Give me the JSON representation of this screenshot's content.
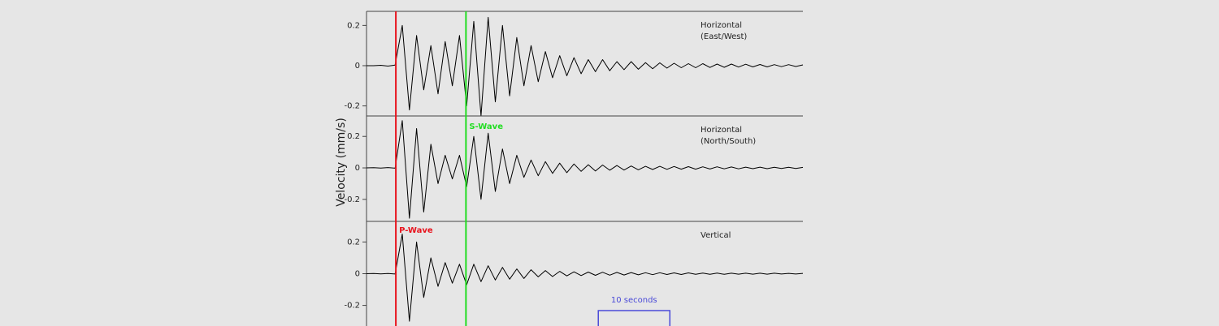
{
  "chart_data": {
    "type": "line",
    "y_label": "Velocity (mm/s)",
    "xlim": [
      0,
      61
    ],
    "color": "#000000",
    "x": [
      0,
      1,
      2,
      3,
      4,
      5,
      6,
      7,
      8,
      9,
      10,
      11,
      12,
      13,
      14,
      15,
      16,
      17,
      18,
      19,
      20,
      21,
      22,
      23,
      24,
      25,
      26,
      27,
      28,
      29,
      30,
      31,
      32,
      33,
      34,
      35,
      36,
      37,
      38,
      39,
      40,
      41,
      42,
      43,
      44,
      45,
      46,
      47,
      48,
      49,
      50,
      51,
      52,
      53,
      54,
      55,
      56,
      57,
      58,
      59,
      60,
      61
    ],
    "panels": [
      {
        "label_lines": [
          "Horizontal",
          "(East/West)"
        ],
        "ylim": [
          -0.25,
          0.27
        ],
        "yticks": [
          0.2,
          0,
          -0.2
        ],
        "values": [
          0,
          0,
          0.002,
          -0.002,
          0.003,
          0.2,
          -0.22,
          0.15,
          -0.12,
          0.1,
          -0.14,
          0.12,
          -0.1,
          0.15,
          -0.2,
          0.22,
          -0.25,
          0.24,
          -0.18,
          0.2,
          -0.15,
          0.14,
          -0.1,
          0.1,
          -0.08,
          0.07,
          -0.06,
          0.05,
          -0.05,
          0.04,
          -0.04,
          0.03,
          -0.03,
          0.03,
          -0.025,
          0.02,
          -0.02,
          0.02,
          -0.018,
          0.015,
          -0.015,
          0.014,
          -0.012,
          0.012,
          -0.01,
          0.01,
          -0.01,
          0.01,
          -0.009,
          0.008,
          -0.008,
          0.008,
          -0.007,
          0.007,
          -0.006,
          0.006,
          -0.006,
          0.005,
          -0.005,
          0.005,
          -0.004,
          0.004
        ]
      },
      {
        "label_lines": [
          "Horizontal",
          "(North/South)"
        ],
        "ylim": [
          -0.34,
          0.33
        ],
        "yticks": [
          0.2,
          0,
          -0.2
        ],
        "values": [
          0,
          0.001,
          -0.001,
          0.002,
          -0.002,
          0.3,
          -0.32,
          0.25,
          -0.28,
          0.15,
          -0.1,
          0.08,
          -0.07,
          0.08,
          -0.12,
          0.2,
          -0.2,
          0.22,
          -0.15,
          0.12,
          -0.1,
          0.08,
          -0.06,
          0.05,
          -0.05,
          0.04,
          -0.035,
          0.03,
          -0.03,
          0.025,
          -0.022,
          0.02,
          -0.02,
          0.018,
          -0.015,
          0.015,
          -0.014,
          0.012,
          -0.012,
          0.01,
          -0.01,
          0.01,
          -0.009,
          0.009,
          -0.008,
          0.008,
          -0.008,
          0.007,
          -0.007,
          0.007,
          -0.006,
          0.006,
          -0.006,
          0.005,
          -0.005,
          0.005,
          -0.005,
          0.004,
          -0.004,
          0.004,
          -0.004,
          0.003
        ]
      },
      {
        "label_lines": [
          "Vertical"
        ],
        "ylim": [
          -0.33,
          0.33
        ],
        "yticks": [
          0.2,
          0,
          -0.2
        ],
        "values": [
          0,
          0.001,
          -0.001,
          0.001,
          -0.002,
          0.25,
          -0.3,
          0.2,
          -0.15,
          0.1,
          -0.08,
          0.07,
          -0.06,
          0.06,
          -0.07,
          0.06,
          -0.05,
          0.05,
          -0.04,
          0.04,
          -0.035,
          0.03,
          -0.03,
          0.025,
          -0.02,
          0.02,
          -0.018,
          0.015,
          -0.014,
          0.012,
          -0.012,
          0.01,
          -0.01,
          0.009,
          -0.009,
          0.008,
          -0.008,
          0.007,
          -0.007,
          0.006,
          -0.006,
          0.006,
          -0.005,
          0.005,
          -0.005,
          0.005,
          -0.004,
          0.004,
          -0.004,
          0.004,
          -0.004,
          0.003,
          -0.003,
          0.003,
          -0.003,
          0.003,
          -0.003,
          0.003,
          -0.002,
          0.002,
          -0.002,
          0.002
        ]
      }
    ],
    "markers": [
      {
        "name": "P-Wave",
        "x": 4.1,
        "color": "#e8141e"
      },
      {
        "name": "S-Wave",
        "x": 13.9,
        "color": "#22dd22"
      }
    ],
    "scale_bar": {
      "label": "10 seconds",
      "x": [
        32.4,
        42.4
      ],
      "color": "#4a4ad8"
    }
  }
}
